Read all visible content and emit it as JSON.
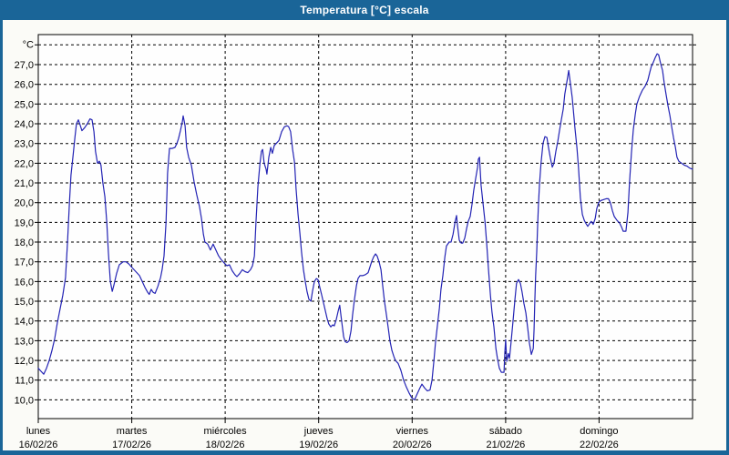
{
  "window": {
    "title": "Temperatura [°C] escala"
  },
  "colors": {
    "titlebar": "#1a6598",
    "frame": "#1a6598",
    "background": "#fbfbf7",
    "plot_bg": "#fefefe",
    "grid": "#000000",
    "border": "#000000",
    "line": "#2323b4",
    "title_text": "#ffffff"
  },
  "chart_data": {
    "type": "line",
    "title": "Temperatura [°C] escala",
    "unit_label": "°C",
    "ylabel": "Temperatura [°C]",
    "ylim": [
      9.0,
      28.5
    ],
    "x_unit": "hours since lunes 00:00",
    "xlim": [
      0,
      168
    ],
    "grid": true,
    "legend_position": "none",
    "grid_temps": [
      10,
      11,
      12,
      13,
      14,
      15,
      16,
      17,
      18,
      19,
      20,
      21,
      22,
      23,
      24,
      25,
      26,
      27,
      28
    ],
    "yticks": [
      {
        "v": 27,
        "label": "27,0"
      },
      {
        "v": 26,
        "label": "26,0"
      },
      {
        "v": 25,
        "label": "25,0"
      },
      {
        "v": 24,
        "label": "24,0"
      },
      {
        "v": 23,
        "label": "23,0"
      },
      {
        "v": 22,
        "label": "22,0"
      },
      {
        "v": 21,
        "label": "21,0"
      },
      {
        "v": 20,
        "label": "20,0"
      },
      {
        "v": 19,
        "label": "19,0"
      },
      {
        "v": 18,
        "label": "18,0"
      },
      {
        "v": 17,
        "label": "17,0"
      },
      {
        "v": 16,
        "label": "16,0"
      },
      {
        "v": 15,
        "label": "15,0"
      },
      {
        "v": 14,
        "label": "14,0"
      },
      {
        "v": 13,
        "label": "13,0"
      },
      {
        "v": 12,
        "label": "12,0"
      },
      {
        "v": 11,
        "label": "11,0"
      },
      {
        "v": 10,
        "label": "10,0"
      }
    ],
    "days": [
      {
        "name": "lunes",
        "date": "16/02/26"
      },
      {
        "name": "martes",
        "date": "17/02/26"
      },
      {
        "name": "miércoles",
        "date": "18/02/26"
      },
      {
        "name": "jueves",
        "date": "19/02/26"
      },
      {
        "name": "viernes",
        "date": "20/02/26"
      },
      {
        "name": "sábado",
        "date": "21/02/26"
      },
      {
        "name": "domingo",
        "date": "22/02/26"
      }
    ],
    "series": [
      [
        0,
        11.6
      ],
      [
        0.7,
        11.45
      ],
      [
        1.4,
        11.3
      ],
      [
        2.1,
        11.6
      ],
      [
        2.8,
        12.0
      ],
      [
        3.5,
        12.5
      ],
      [
        4.2,
        13.1
      ],
      [
        4.9,
        13.9
      ],
      [
        5.6,
        14.6
      ],
      [
        6.3,
        15.3
      ],
      [
        7.0,
        16.2
      ],
      [
        7.5,
        18.0
      ],
      [
        8.0,
        20.0
      ],
      [
        8.4,
        21.4
      ],
      [
        8.9,
        22.3
      ],
      [
        9.4,
        23.3
      ],
      [
        9.8,
        24.0
      ],
      [
        10.3,
        24.2
      ],
      [
        10.8,
        23.9
      ],
      [
        11.2,
        23.65
      ],
      [
        11.9,
        23.8
      ],
      [
        12.6,
        24.0
      ],
      [
        13.3,
        24.25
      ],
      [
        13.8,
        24.2
      ],
      [
        14.3,
        23.6
      ],
      [
        14.7,
        22.6
      ],
      [
        15.2,
        22.0
      ],
      [
        15.7,
        22.1
      ],
      [
        16.1,
        21.9
      ],
      [
        16.6,
        21.0
      ],
      [
        17.1,
        20.3
      ],
      [
        17.6,
        19.0
      ],
      [
        18.0,
        17.5
      ],
      [
        18.5,
        16.0
      ],
      [
        19.0,
        15.5
      ],
      [
        19.4,
        15.8
      ],
      [
        20.1,
        16.4
      ],
      [
        20.8,
        16.85
      ],
      [
        21.8,
        17.0
      ],
      [
        22.5,
        17.0
      ],
      [
        23.2,
        16.9
      ],
      [
        23.9,
        16.75
      ],
      [
        24.6,
        16.6
      ],
      [
        25.3,
        16.45
      ],
      [
        26.0,
        16.3
      ],
      [
        26.7,
        16.0
      ],
      [
        27.4,
        15.7
      ],
      [
        28.1,
        15.45
      ],
      [
        28.5,
        15.35
      ],
      [
        29.0,
        15.6
      ],
      [
        29.5,
        15.45
      ],
      [
        30.0,
        15.4
      ],
      [
        30.7,
        15.75
      ],
      [
        31.4,
        16.2
      ],
      [
        31.8,
        16.6
      ],
      [
        32.3,
        17.3
      ],
      [
        32.8,
        19.0
      ],
      [
        33.2,
        21.5
      ],
      [
        33.7,
        22.75
      ],
      [
        34.4,
        22.75
      ],
      [
        35.1,
        22.8
      ],
      [
        35.6,
        23.0
      ],
      [
        36.0,
        23.25
      ],
      [
        36.5,
        23.65
      ],
      [
        37.0,
        24.1
      ],
      [
        37.2,
        24.4
      ],
      [
        37.7,
        23.9
      ],
      [
        38.1,
        22.8
      ],
      [
        38.6,
        22.3
      ],
      [
        39.3,
        21.9
      ],
      [
        40.0,
        21.05
      ],
      [
        40.7,
        20.4
      ],
      [
        41.4,
        19.8
      ],
      [
        41.9,
        19.2
      ],
      [
        42.4,
        18.4
      ],
      [
        42.8,
        18.0
      ],
      [
        43.5,
        17.9
      ],
      [
        44.2,
        17.6
      ],
      [
        44.9,
        17.9
      ],
      [
        45.6,
        17.6
      ],
      [
        46.3,
        17.3
      ],
      [
        47.0,
        17.1
      ],
      [
        47.7,
        16.95
      ],
      [
        48.4,
        16.8
      ],
      [
        49.1,
        16.85
      ],
      [
        49.8,
        16.55
      ],
      [
        50.5,
        16.35
      ],
      [
        51.0,
        16.25
      ],
      [
        51.7,
        16.4
      ],
      [
        52.4,
        16.6
      ],
      [
        53.1,
        16.5
      ],
      [
        53.8,
        16.45
      ],
      [
        54.5,
        16.6
      ],
      [
        55.0,
        16.8
      ],
      [
        55.5,
        17.3
      ],
      [
        55.9,
        19.0
      ],
      [
        56.4,
        20.8
      ],
      [
        56.9,
        21.95
      ],
      [
        57.3,
        22.6
      ],
      [
        57.6,
        22.7
      ],
      [
        58.0,
        22.0
      ],
      [
        58.5,
        21.7
      ],
      [
        58.7,
        21.45
      ],
      [
        59.2,
        22.3
      ],
      [
        59.7,
        22.8
      ],
      [
        60.1,
        22.5
      ],
      [
        60.6,
        22.9
      ],
      [
        61.1,
        23.0
      ],
      [
        61.8,
        23.15
      ],
      [
        62.5,
        23.6
      ],
      [
        63.2,
        23.85
      ],
      [
        63.9,
        23.9
      ],
      [
        64.3,
        23.85
      ],
      [
        64.8,
        23.6
      ],
      [
        65.3,
        22.7
      ],
      [
        65.8,
        22.05
      ],
      [
        66.2,
        20.7
      ],
      [
        66.7,
        19.4
      ],
      [
        67.2,
        18.4
      ],
      [
        67.6,
        17.5
      ],
      [
        68.1,
        16.6
      ],
      [
        68.6,
        15.95
      ],
      [
        69.0,
        15.5
      ],
      [
        69.5,
        15.1
      ],
      [
        70.0,
        15.0
      ],
      [
        70.4,
        15.5
      ],
      [
        70.9,
        16.0
      ],
      [
        71.4,
        16.15
      ],
      [
        71.8,
        16.1
      ],
      [
        72.3,
        15.7
      ],
      [
        72.8,
        15.3
      ],
      [
        73.5,
        14.7
      ],
      [
        74.2,
        14.1
      ],
      [
        74.6,
        13.85
      ],
      [
        75.1,
        13.7
      ],
      [
        75.6,
        13.8
      ],
      [
        76.0,
        13.75
      ],
      [
        76.5,
        14.05
      ],
      [
        77.0,
        14.5
      ],
      [
        77.4,
        14.8
      ],
      [
        77.9,
        14.0
      ],
      [
        78.4,
        13.2
      ],
      [
        78.8,
        12.95
      ],
      [
        79.3,
        12.9
      ],
      [
        79.8,
        13.0
      ],
      [
        80.3,
        13.5
      ],
      [
        80.7,
        14.3
      ],
      [
        81.2,
        15.1
      ],
      [
        81.7,
        15.8
      ],
      [
        82.1,
        16.15
      ],
      [
        82.6,
        16.3
      ],
      [
        83.3,
        16.3
      ],
      [
        84.0,
        16.35
      ],
      [
        84.7,
        16.45
      ],
      [
        85.2,
        16.75
      ],
      [
        85.6,
        17.0
      ],
      [
        86.1,
        17.25
      ],
      [
        86.6,
        17.4
      ],
      [
        87.0,
        17.3
      ],
      [
        87.5,
        17.0
      ],
      [
        88.0,
        16.6
      ],
      [
        88.4,
        15.85
      ],
      [
        88.9,
        15.0
      ],
      [
        89.4,
        14.3
      ],
      [
        89.9,
        13.6
      ],
      [
        90.3,
        13.0
      ],
      [
        90.8,
        12.5
      ],
      [
        91.3,
        12.2
      ],
      [
        91.7,
        12.0
      ],
      [
        92.4,
        11.85
      ],
      [
        93.1,
        11.5
      ],
      [
        93.8,
        11.0
      ],
      [
        94.5,
        10.65
      ],
      [
        95.2,
        10.35
      ],
      [
        95.9,
        10.1
      ],
      [
        96.6,
        10.0
      ],
      [
        97.3,
        10.3
      ],
      [
        98.0,
        10.6
      ],
      [
        98.5,
        10.8
      ],
      [
        99.2,
        10.6
      ],
      [
        99.9,
        10.45
      ],
      [
        100.6,
        10.5
      ],
      [
        101.1,
        11.0
      ],
      [
        101.6,
        12.0
      ],
      [
        102.0,
        12.9
      ],
      [
        102.5,
        13.8
      ],
      [
        103.0,
        14.65
      ],
      [
        103.4,
        15.6
      ],
      [
        103.9,
        16.3
      ],
      [
        104.4,
        17.25
      ],
      [
        104.8,
        17.8
      ],
      [
        105.5,
        18.0
      ],
      [
        106.0,
        18.0
      ],
      [
        106.5,
        18.4
      ],
      [
        107.0,
        19.0
      ],
      [
        107.4,
        19.35
      ],
      [
        107.6,
        18.9
      ],
      [
        108.1,
        18.1
      ],
      [
        108.6,
        17.95
      ],
      [
        109.0,
        17.95
      ],
      [
        109.5,
        18.2
      ],
      [
        110.0,
        18.7
      ],
      [
        110.4,
        19.05
      ],
      [
        110.9,
        19.3
      ],
      [
        111.4,
        19.95
      ],
      [
        111.8,
        20.6
      ],
      [
        112.3,
        21.2
      ],
      [
        112.8,
        21.8
      ],
      [
        113.0,
        22.2
      ],
      [
        113.3,
        22.3
      ],
      [
        113.7,
        20.9
      ],
      [
        114.2,
        19.95
      ],
      [
        114.7,
        19.05
      ],
      [
        115.1,
        18.05
      ],
      [
        115.6,
        16.6
      ],
      [
        116.1,
        15.3
      ],
      [
        116.5,
        14.45
      ],
      [
        117.0,
        13.7
      ],
      [
        117.5,
        12.6
      ],
      [
        117.9,
        12.1
      ],
      [
        118.4,
        11.6
      ],
      [
        118.9,
        11.4
      ],
      [
        119.6,
        11.4
      ],
      [
        119.8,
        12.4
      ],
      [
        120.0,
        13.05
      ],
      [
        120.3,
        11.95
      ],
      [
        120.7,
        12.35
      ],
      [
        121.0,
        12.1
      ],
      [
        121.4,
        12.9
      ],
      [
        121.9,
        14.0
      ],
      [
        122.4,
        15.1
      ],
      [
        122.8,
        15.9
      ],
      [
        123.3,
        16.1
      ],
      [
        123.8,
        15.9
      ],
      [
        124.2,
        15.5
      ],
      [
        124.7,
        14.9
      ],
      [
        125.2,
        14.4
      ],
      [
        125.7,
        13.6
      ],
      [
        126.1,
        12.9
      ],
      [
        126.6,
        12.3
      ],
      [
        127.1,
        12.6
      ],
      [
        127.3,
        13.6
      ],
      [
        127.5,
        15.0
      ],
      [
        127.7,
        16.3
      ],
      [
        128.0,
        17.5
      ],
      [
        128.2,
        18.7
      ],
      [
        128.4,
        19.8
      ],
      [
        128.7,
        20.9
      ],
      [
        129.1,
        22.0
      ],
      [
        129.6,
        23.0
      ],
      [
        130.1,
        23.35
      ],
      [
        130.6,
        23.3
      ],
      [
        131.0,
        22.8
      ],
      [
        131.5,
        22.25
      ],
      [
        132.0,
        21.8
      ],
      [
        132.4,
        22.0
      ],
      [
        132.9,
        22.6
      ],
      [
        133.4,
        23.1
      ],
      [
        133.8,
        23.6
      ],
      [
        134.3,
        24.2
      ],
      [
        134.8,
        24.75
      ],
      [
        135.2,
        25.5
      ],
      [
        135.7,
        26.1
      ],
      [
        136.2,
        26.7
      ],
      [
        136.6,
        26.1
      ],
      [
        137.1,
        25.35
      ],
      [
        137.3,
        24.9
      ],
      [
        137.8,
        23.8
      ],
      [
        138.3,
        22.8
      ],
      [
        138.7,
        21.8
      ],
      [
        139.2,
        20.25
      ],
      [
        139.7,
        19.4
      ],
      [
        140.2,
        19.1
      ],
      [
        140.6,
        18.95
      ],
      [
        141.1,
        18.8
      ],
      [
        141.6,
        18.95
      ],
      [
        142.0,
        19.05
      ],
      [
        142.5,
        18.9
      ],
      [
        143.0,
        19.2
      ],
      [
        143.4,
        19.7
      ],
      [
        143.9,
        20.0
      ],
      [
        144.4,
        20.1
      ],
      [
        145.1,
        20.15
      ],
      [
        145.8,
        20.2
      ],
      [
        146.4,
        20.2
      ],
      [
        146.9,
        20.0
      ],
      [
        147.4,
        19.6
      ],
      [
        147.9,
        19.3
      ],
      [
        148.6,
        19.1
      ],
      [
        149.3,
        18.95
      ],
      [
        149.8,
        18.75
      ],
      [
        150.2,
        18.55
      ],
      [
        150.9,
        18.55
      ],
      [
        151.4,
        19.5
      ],
      [
        151.8,
        21.0
      ],
      [
        152.3,
        22.5
      ],
      [
        152.8,
        23.7
      ],
      [
        153.3,
        24.5
      ],
      [
        153.7,
        25.0
      ],
      [
        154.4,
        25.4
      ],
      [
        155.1,
        25.7
      ],
      [
        155.8,
        25.9
      ],
      [
        156.5,
        26.2
      ],
      [
        157.0,
        26.6
      ],
      [
        157.4,
        26.9
      ],
      [
        157.9,
        27.1
      ],
      [
        158.4,
        27.35
      ],
      [
        158.9,
        27.55
      ],
      [
        159.3,
        27.5
      ],
      [
        159.8,
        27.05
      ],
      [
        160.3,
        26.7
      ],
      [
        160.7,
        26.1
      ],
      [
        161.2,
        25.5
      ],
      [
        161.7,
        24.9
      ],
      [
        162.2,
        24.4
      ],
      [
        162.6,
        23.9
      ],
      [
        163.1,
        23.3
      ],
      [
        163.6,
        22.8
      ],
      [
        164.0,
        22.3
      ],
      [
        164.5,
        22.1
      ],
      [
        165.2,
        22.0
      ],
      [
        165.9,
        21.9
      ],
      [
        166.6,
        21.85
      ],
      [
        167.3,
        21.75
      ],
      [
        168.0,
        21.7
      ]
    ]
  }
}
